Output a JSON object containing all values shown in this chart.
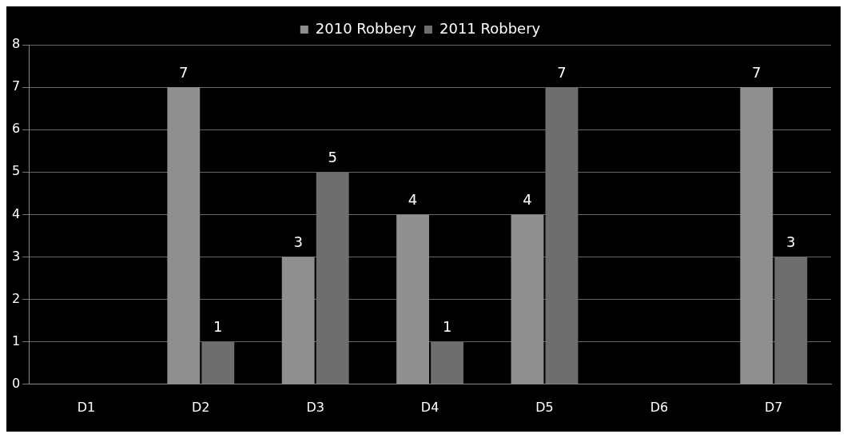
{
  "chart_data": {
    "type": "bar",
    "categories": [
      "D1",
      "D2",
      "D3",
      "D4",
      "D5",
      "D6",
      "D7"
    ],
    "series": [
      {
        "name": "2010 Robbery",
        "color": "#8f8f8f",
        "values": [
          null,
          7,
          3,
          4,
          4,
          null,
          7
        ]
      },
      {
        "name": "2011 Robbery",
        "color": "#6e6e6e",
        "values": [
          null,
          1,
          5,
          1,
          7,
          null,
          3
        ]
      }
    ],
    "ylim": [
      0,
      8
    ],
    "yticks": [
      0,
      1,
      2,
      3,
      4,
      5,
      6,
      7,
      8
    ],
    "grid": "y",
    "legend": "top",
    "data_labels": true
  }
}
